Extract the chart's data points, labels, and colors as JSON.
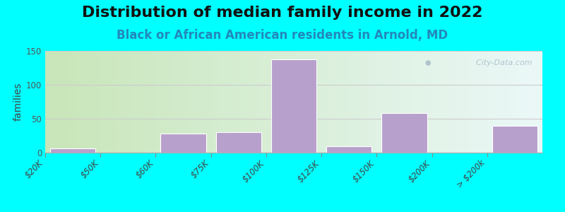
{
  "title": "Distribution of median family income in 2022",
  "subtitle": "Black or African American residents in Arnold, MD",
  "ylabel": "families",
  "background_color": "#00FFFF",
  "plot_bg_left": "#c8e6b0",
  "plot_bg_right": "#e8f5f5",
  "bar_color": "#b8a0cc",
  "bar_edge_color": "#ffffff",
  "bin_edges": [
    "$20K",
    "$50K",
    "$60K",
    "$75K",
    "$100K",
    "$125K",
    "$150K",
    "$200K",
    "> $200k"
  ],
  "values": [
    6,
    0,
    28,
    30,
    138,
    9,
    58,
    0,
    40
  ],
  "ylim": [
    0,
    150
  ],
  "yticks": [
    0,
    50,
    100,
    150
  ],
  "title_fontsize": 16,
  "subtitle_fontsize": 12,
  "subtitle_color": "#2288bb",
  "ylabel_fontsize": 10,
  "tick_fontsize": 8.5,
  "watermark_text": "City-Data.com",
  "watermark_color": "#9ab0c0",
  "watermark_alpha": 0.7,
  "grid_color": "#cccccc",
  "grid_linewidth": 0.8
}
